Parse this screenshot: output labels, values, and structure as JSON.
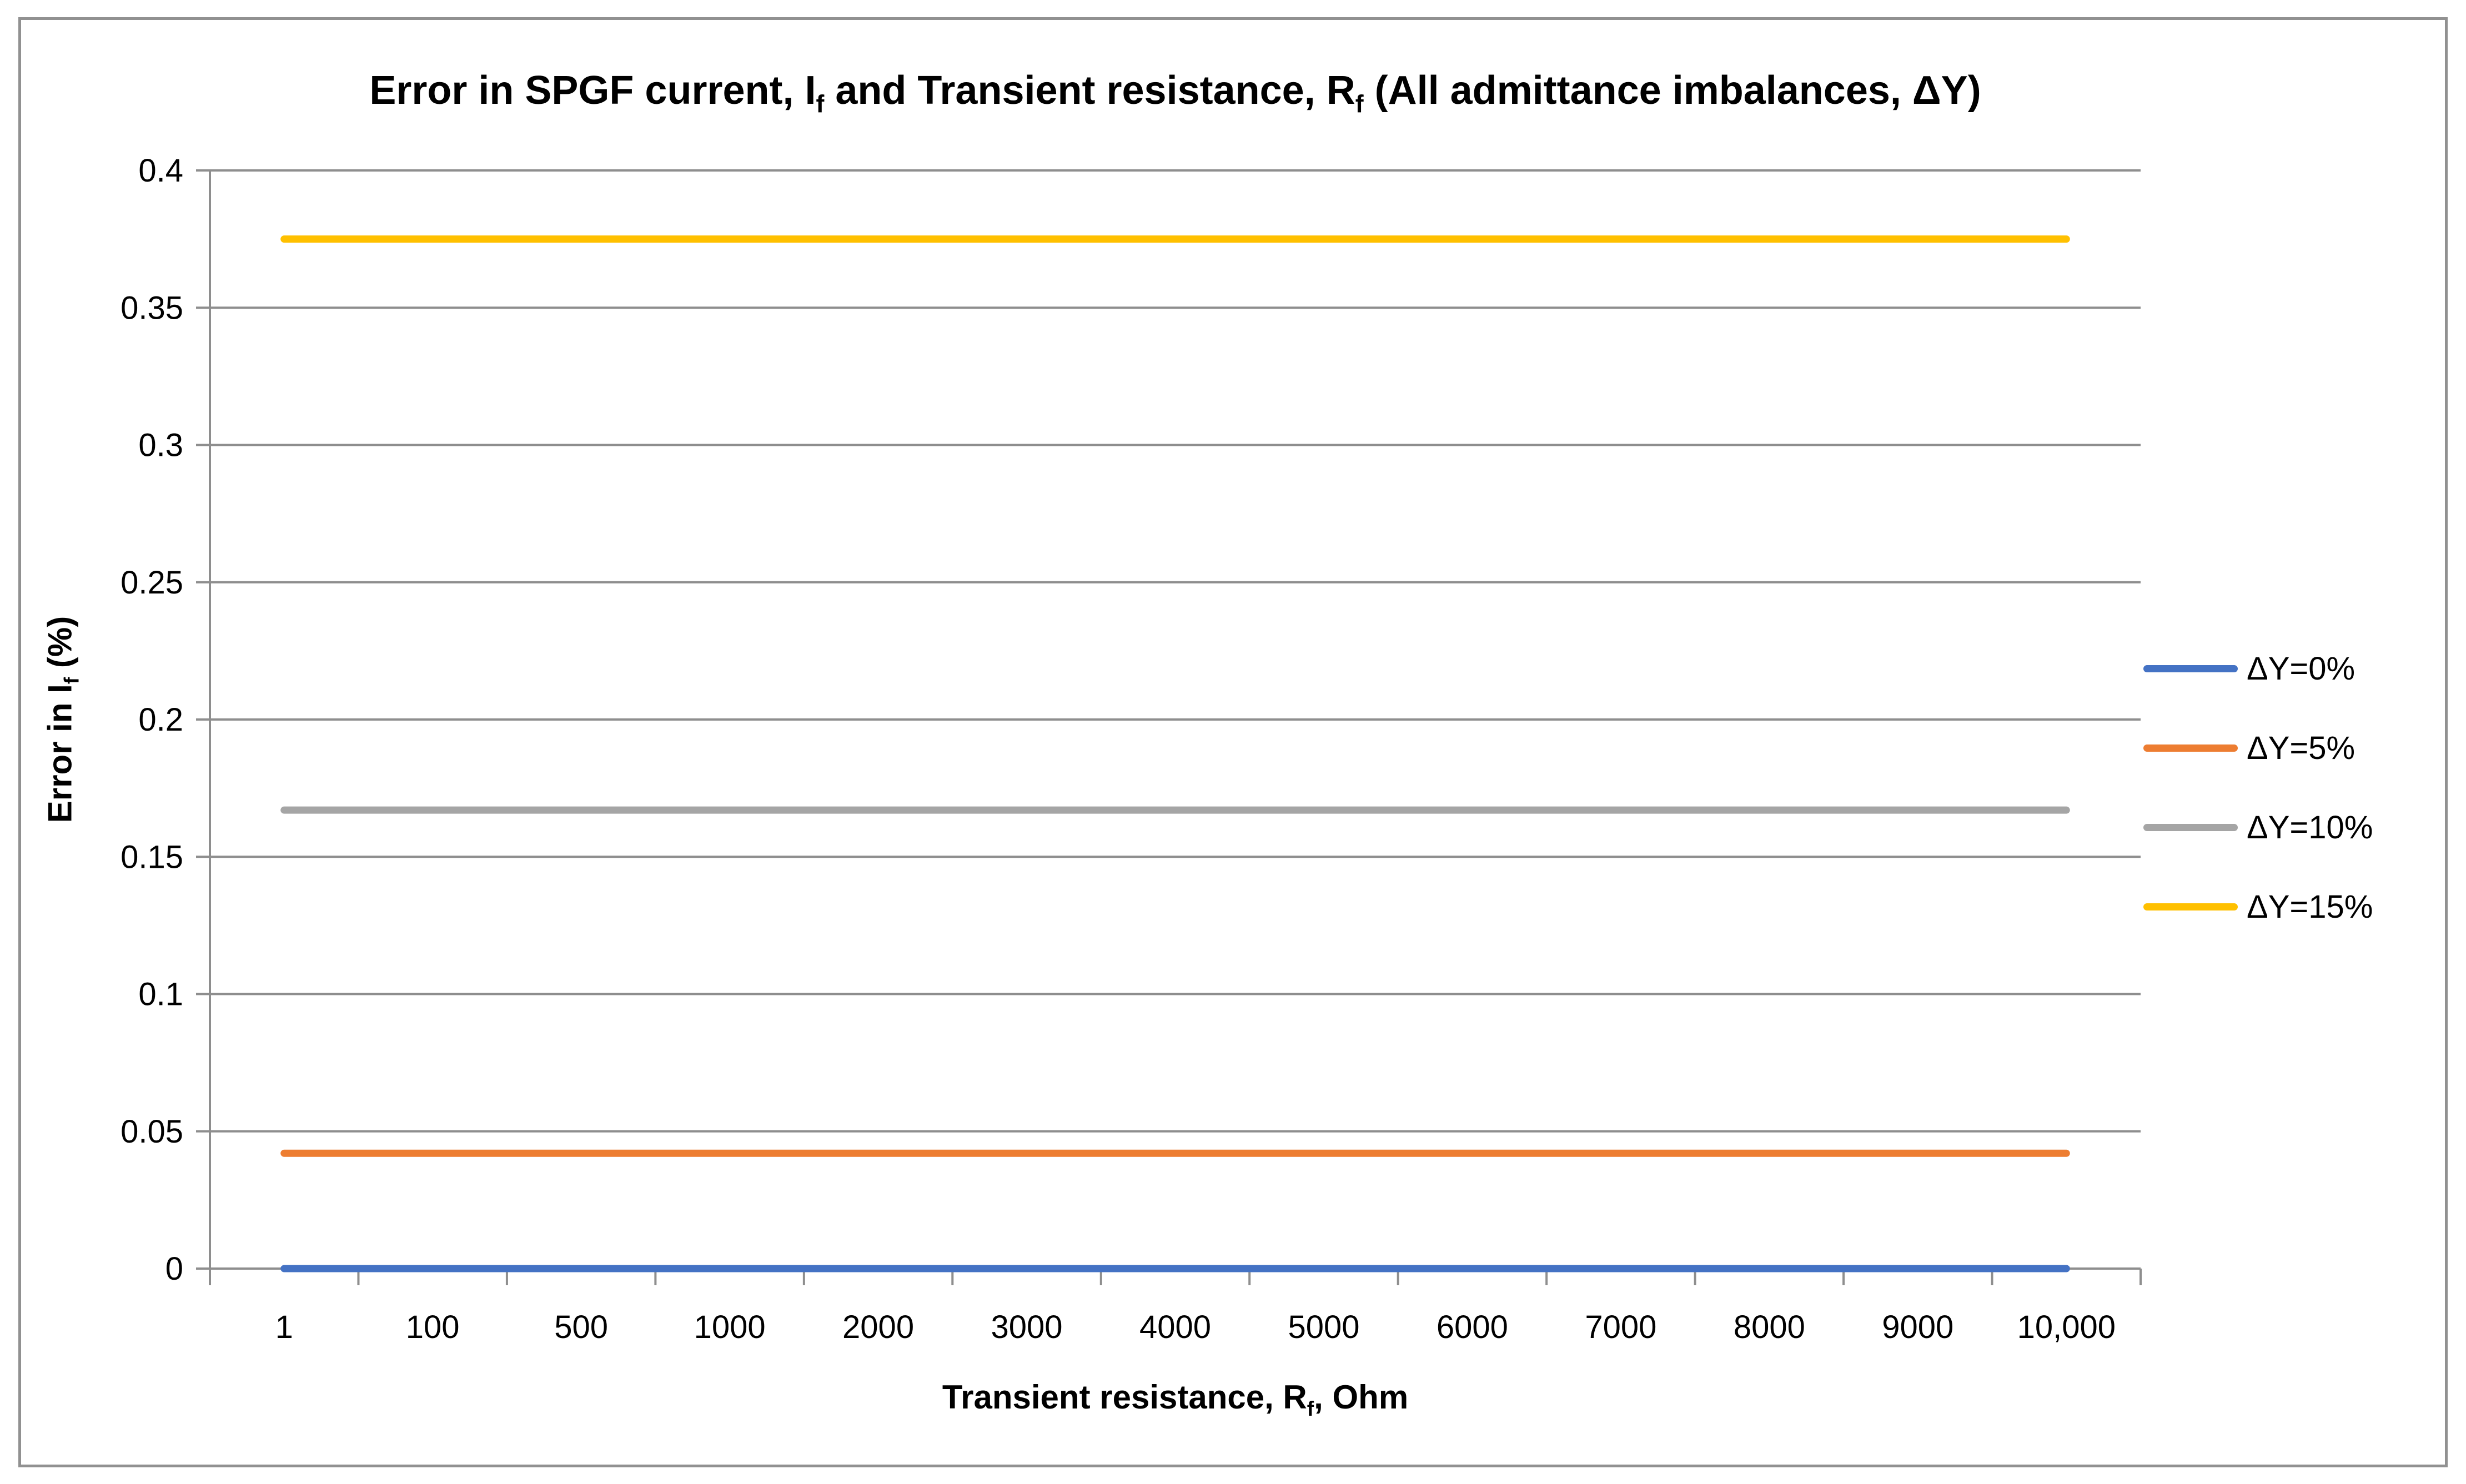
{
  "figure": {
    "title_parts": {
      "t1": "Error in SPGF current, I",
      "t1_sub": "f",
      "t2": " and Transient resistance, R",
      "t2_sub": "f",
      "t3": " (All admittance imbalances, ΔY)"
    }
  },
  "axis_titles": {
    "x_parts": {
      "t1": "Transient resistance, R",
      "sub": "f",
      "t2": ", Ohm"
    },
    "y_parts": {
      "t1": "Error in I",
      "sub": "f",
      "t2": " (%)"
    }
  },
  "chart_data": {
    "type": "line",
    "title": "Error in SPGF current, If and Transient resistance, Rf (All admittance imbalances, ΔY)",
    "xlabel": "Transient resistance, Rf, Ohm",
    "ylabel": "Error in If (%)",
    "categories": [
      "1",
      "100",
      "500",
      "1000",
      "2000",
      "3000",
      "4000",
      "5000",
      "6000",
      "7000",
      "8000",
      "9000",
      "10,000"
    ],
    "y_ticks": [
      "0",
      "0.05",
      "0.1",
      "0.15",
      "0.2",
      "0.25",
      "0.3",
      "0.35",
      "0.4"
    ],
    "ylim": [
      0,
      0.4
    ],
    "ytick_step": 0.05,
    "grid": true,
    "legend_position": "right",
    "series": [
      {
        "name": "ΔY=0%",
        "color": "#4472C4",
        "values": [
          0,
          0,
          0,
          0,
          0,
          0,
          0,
          0,
          0,
          0,
          0,
          0,
          0
        ]
      },
      {
        "name": "ΔY=5%",
        "color": "#ED7D31",
        "values": [
          0.042,
          0.042,
          0.042,
          0.042,
          0.042,
          0.042,
          0.042,
          0.042,
          0.042,
          0.042,
          0.042,
          0.042,
          0.042
        ]
      },
      {
        "name": "ΔY=10%",
        "color": "#A5A5A5",
        "values": [
          0.167,
          0.167,
          0.167,
          0.167,
          0.167,
          0.167,
          0.167,
          0.167,
          0.167,
          0.167,
          0.167,
          0.167,
          0.167
        ]
      },
      {
        "name": "ΔY=15%",
        "color": "#FFC000",
        "values": [
          0.375,
          0.375,
          0.375,
          0.375,
          0.375,
          0.375,
          0.375,
          0.375,
          0.375,
          0.375,
          0.375,
          0.375,
          0.375
        ]
      }
    ],
    "colors": {
      "axis_and_grid": "#8E8E8E",
      "border": "#919191",
      "text": "#000000",
      "background": "#FFFFFF"
    }
  }
}
